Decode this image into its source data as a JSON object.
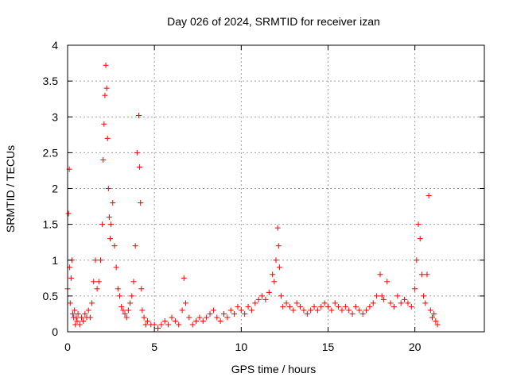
{
  "chart_data": {
    "type": "scatter",
    "title": "Day 026 of 2024, SRMTID for receiver izan",
    "xlabel": "GPS time / hours",
    "ylabel": "SRMTID / TECUs",
    "xlim": [
      0,
      24
    ],
    "ylim": [
      0,
      4
    ],
    "xticks": [
      0,
      5,
      10,
      15,
      20
    ],
    "xtick_labels": [
      "0",
      "5",
      "10",
      "15",
      "20"
    ],
    "yticks": [
      0,
      0.5,
      1,
      1.5,
      2,
      2.5,
      3,
      3.5,
      4
    ],
    "ytick_labels": [
      "0",
      "0.5",
      "1",
      "1.5",
      "2",
      "2.5",
      "3",
      "3.5",
      "4"
    ],
    "grid": true,
    "marker": "+",
    "color": "#ff0000",
    "series": [
      {
        "name": "SRMTID",
        "x": [
          0.0,
          0.05,
          0.1,
          0.12,
          0.15,
          0.2,
          0.25,
          0.3,
          0.35,
          0.4,
          0.45,
          0.5,
          0.55,
          0.6,
          0.7,
          0.8,
          0.9,
          1.0,
          1.1,
          1.2,
          1.3,
          1.4,
          1.5,
          1.6,
          1.7,
          1.8,
          1.9,
          2.0,
          2.05,
          2.1,
          2.15,
          2.2,
          2.25,
          2.3,
          2.35,
          2.4,
          2.45,
          2.5,
          2.6,
          2.7,
          2.8,
          2.9,
          3.0,
          3.1,
          3.2,
          3.3,
          3.4,
          3.5,
          3.6,
          3.7,
          3.8,
          3.9,
          4.0,
          4.1,
          4.15,
          4.2,
          4.25,
          4.3,
          4.4,
          4.5,
          4.6,
          4.8,
          5.0,
          5.2,
          5.4,
          5.6,
          5.8,
          6.0,
          6.2,
          6.4,
          6.6,
          6.7,
          6.8,
          7.0,
          7.2,
          7.4,
          7.6,
          7.8,
          8.0,
          8.2,
          8.4,
          8.6,
          8.8,
          9.0,
          9.2,
          9.4,
          9.6,
          9.8,
          10.0,
          10.2,
          10.4,
          10.6,
          10.8,
          11.0,
          11.2,
          11.4,
          11.6,
          11.8,
          11.9,
          12.0,
          12.1,
          12.15,
          12.2,
          12.3,
          12.4,
          12.6,
          12.8,
          13.0,
          13.2,
          13.4,
          13.6,
          13.8,
          14.0,
          14.2,
          14.4,
          14.6,
          14.8,
          15.0,
          15.2,
          15.4,
          15.6,
          15.8,
          16.0,
          16.2,
          16.4,
          16.6,
          16.8,
          17.0,
          17.2,
          17.4,
          17.6,
          17.8,
          18.0,
          18.1,
          18.2,
          18.4,
          18.6,
          18.8,
          19.0,
          19.2,
          19.4,
          19.6,
          19.8,
          20.0,
          20.1,
          20.2,
          20.3,
          20.4,
          20.5,
          20.6,
          20.7,
          20.8,
          20.9,
          21.0,
          21.1,
          21.2,
          21.3
        ],
        "y": [
          0.6,
          1.65,
          2.27,
          0.9,
          0.4,
          0.75,
          1.0,
          0.25,
          0.2,
          0.3,
          0.1,
          0.2,
          0.15,
          0.25,
          0.1,
          0.2,
          0.15,
          0.25,
          0.2,
          0.3,
          0.2,
          0.4,
          0.7,
          1.0,
          0.6,
          0.7,
          1.0,
          1.5,
          2.4,
          2.9,
          3.3,
          3.72,
          3.4,
          2.7,
          2.0,
          1.6,
          1.3,
          1.5,
          1.8,
          1.2,
          0.9,
          0.6,
          0.5,
          0.35,
          0.3,
          0.25,
          0.2,
          0.3,
          0.4,
          0.5,
          0.7,
          1.2,
          2.5,
          3.02,
          2.3,
          1.8,
          0.6,
          0.3,
          0.2,
          0.1,
          0.15,
          0.1,
          0.1,
          0.05,
          0.1,
          0.15,
          0.1,
          0.2,
          0.15,
          0.1,
          0.3,
          0.75,
          0.4,
          0.2,
          0.1,
          0.15,
          0.2,
          0.15,
          0.2,
          0.25,
          0.3,
          0.2,
          0.15,
          0.25,
          0.2,
          0.3,
          0.25,
          0.35,
          0.3,
          0.25,
          0.35,
          0.3,
          0.4,
          0.45,
          0.5,
          0.45,
          0.55,
          0.8,
          0.7,
          1.0,
          1.45,
          1.2,
          0.9,
          0.5,
          0.35,
          0.4,
          0.35,
          0.3,
          0.4,
          0.35,
          0.3,
          0.25,
          0.3,
          0.35,
          0.3,
          0.35,
          0.4,
          0.35,
          0.3,
          0.4,
          0.35,
          0.3,
          0.35,
          0.3,
          0.25,
          0.35,
          0.3,
          0.25,
          0.3,
          0.35,
          0.4,
          0.5,
          0.8,
          0.5,
          0.45,
          0.7,
          0.4,
          0.35,
          0.5,
          0.4,
          0.45,
          0.4,
          0.35,
          0.6,
          1.0,
          1.5,
          1.3,
          0.8,
          0.5,
          0.4,
          0.8,
          1.9,
          0.3,
          0.2,
          0.25,
          0.15,
          0.1
        ]
      }
    ]
  }
}
